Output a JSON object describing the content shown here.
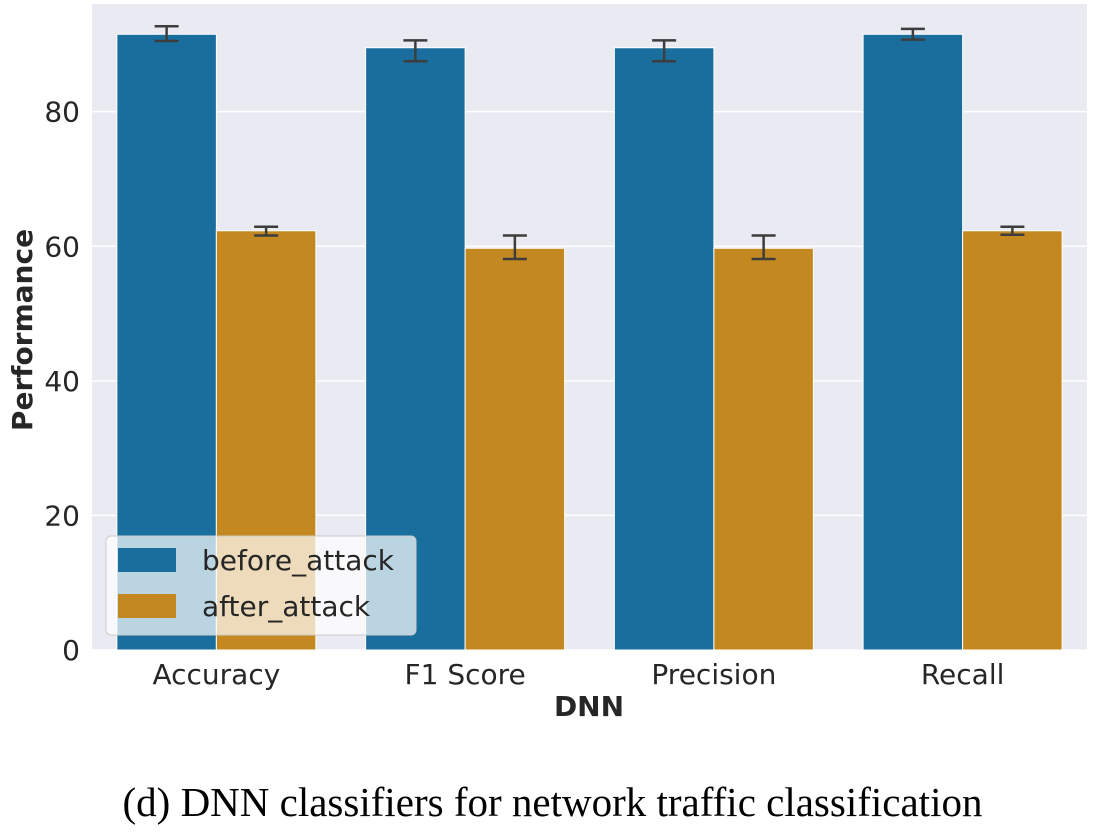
{
  "chart_data": {
    "type": "bar",
    "categories": [
      "Accuracy",
      "F1 Score",
      "Precision",
      "Recall"
    ],
    "series": [
      {
        "name": "before_attack",
        "color": "#1a6e9e",
        "values": [
          91.5,
          89.5,
          89.5,
          91.5
        ],
        "err_low": [
          90.5,
          87.5,
          87.5,
          90.7
        ],
        "err_high": [
          92.7,
          90.6,
          90.6,
          92.3
        ]
      },
      {
        "name": "after_attack",
        "color": "#c48820",
        "values": [
          62.3,
          59.7,
          59.7,
          62.3
        ],
        "err_low": [
          61.6,
          58.1,
          58.1,
          61.7
        ],
        "err_high": [
          62.9,
          61.6,
          61.6,
          62.9
        ]
      }
    ],
    "xlabel": "DNN",
    "ylabel": "Performance",
    "ylim": [
      0,
      96
    ],
    "yticks": [
      0,
      20,
      40,
      60,
      80
    ],
    "grid": true,
    "legend_position": "lower-left",
    "background": "#eaeaf2"
  },
  "caption": "(d) DNN classifiers for network traffic classification"
}
